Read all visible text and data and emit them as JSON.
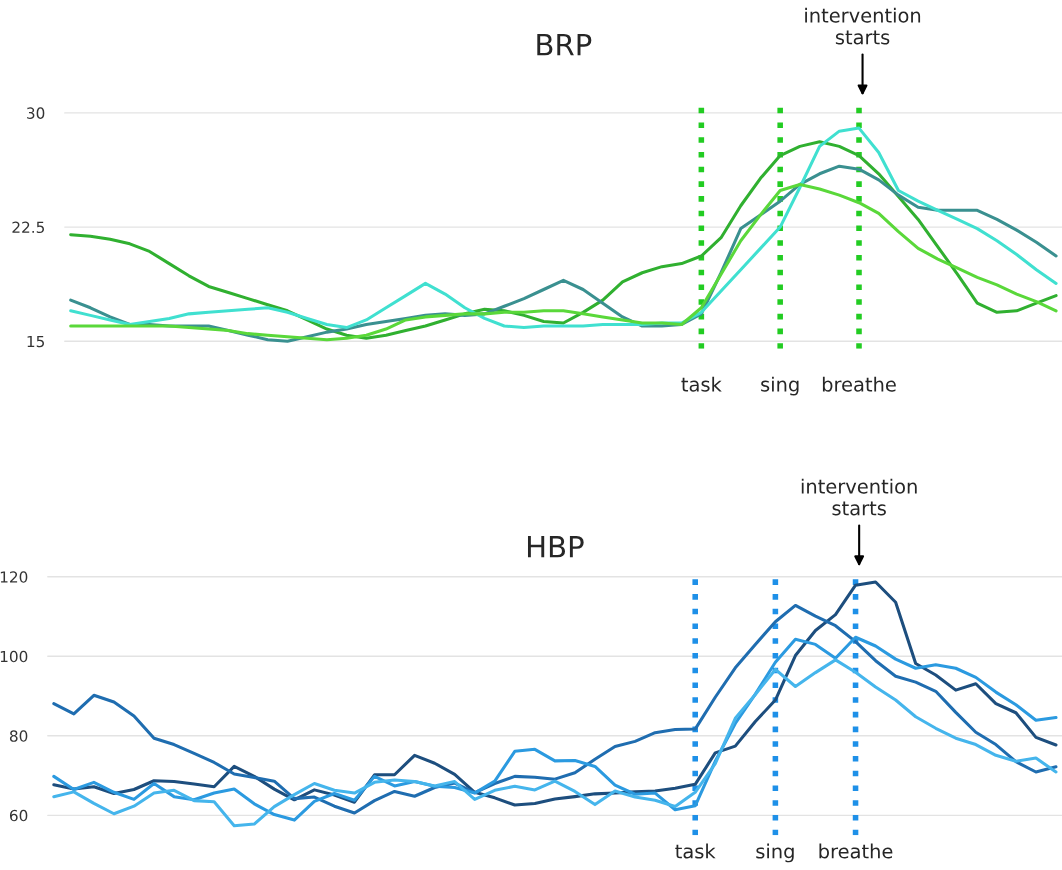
{
  "chart_data": [
    {
      "type": "line",
      "title": "BRP",
      "categories": [
        null,
        null,
        null,
        null,
        null,
        null,
        null,
        null,
        null,
        null,
        null,
        null,
        null,
        null,
        null,
        null,
        null,
        null,
        null,
        null,
        null,
        null,
        null,
        null,
        null,
        null,
        null,
        null,
        null,
        null,
        null,
        null,
        "task",
        null,
        null,
        null,
        "sing",
        null,
        null,
        null,
        "breathe",
        null,
        null,
        null,
        null,
        null,
        null,
        null,
        null,
        null,
        null
      ],
      "ylim": [
        14.5,
        30.5
      ],
      "yticks": [
        15,
        22.5,
        30
      ],
      "grid": "y",
      "series": [
        {
          "color": "#30b030",
          "values": [
            22.0,
            21.9,
            21.7,
            21.4,
            20.9,
            20.1,
            19.3,
            18.6,
            18.2,
            17.8,
            17.4,
            17.0,
            16.4,
            15.8,
            15.4,
            15.2,
            15.4,
            15.7,
            16.0,
            16.4,
            16.8,
            17.1,
            17.0,
            16.7,
            16.3,
            16.2,
            16.9,
            17.7,
            18.9,
            19.5,
            19.9,
            20.1,
            20.6,
            21.8,
            23.9,
            25.7,
            27.2,
            27.8,
            28.1,
            27.8,
            27.2,
            26.0,
            24.5,
            23.0,
            21.2,
            19.4,
            17.5,
            16.9,
            17.0,
            17.5,
            18.0
          ]
        },
        {
          "color": "#3a9090",
          "values": [
            17.7,
            17.2,
            16.6,
            16.1,
            16.1,
            16.0,
            16.0,
            16.0,
            15.7,
            15.4,
            15.1,
            15.0,
            15.3,
            15.6,
            15.8,
            16.1,
            16.3,
            16.5,
            16.7,
            16.8,
            16.7,
            16.8,
            17.3,
            17.8,
            18.4,
            19.0,
            18.4,
            17.5,
            16.6,
            16.0,
            16.0,
            16.1,
            16.8,
            19.5,
            22.4,
            23.3,
            24.2,
            25.3,
            26.0,
            26.5,
            26.3,
            25.6,
            24.6,
            23.8,
            23.6,
            23.6,
            23.6,
            23.0,
            22.3,
            21.5,
            20.6
          ]
        },
        {
          "color": "#40e0d0",
          "values": [
            17.0,
            16.7,
            16.4,
            16.1,
            16.3,
            16.5,
            16.8,
            16.9,
            17.0,
            17.1,
            17.2,
            16.9,
            16.5,
            16.1,
            15.9,
            16.4,
            17.2,
            18.0,
            18.8,
            18.1,
            17.2,
            16.5,
            16.0,
            15.9,
            16.0,
            16.0,
            16.0,
            16.1,
            16.1,
            16.1,
            16.2,
            16.2,
            16.9,
            18.3,
            19.7,
            21.1,
            22.5,
            25.1,
            27.8,
            28.8,
            29.0,
            27.4,
            24.9,
            24.2,
            23.6,
            23.0,
            22.4,
            21.6,
            20.7,
            19.7,
            18.8
          ]
        },
        {
          "color": "#5ad83a",
          "values": [
            16.0,
            16.0,
            16.0,
            16.0,
            16.0,
            16.0,
            15.9,
            15.8,
            15.7,
            15.5,
            15.4,
            15.3,
            15.2,
            15.1,
            15.2,
            15.4,
            15.8,
            16.4,
            16.6,
            16.7,
            16.8,
            16.8,
            16.9,
            16.9,
            17.0,
            17.0,
            16.8,
            16.6,
            16.4,
            16.2,
            16.2,
            16.1,
            17.2,
            19.4,
            21.6,
            23.3,
            24.9,
            25.3,
            25.0,
            24.6,
            24.1,
            23.4,
            22.2,
            21.1,
            20.4,
            19.8,
            19.2,
            18.7,
            18.1,
            17.6,
            17.0
          ]
        }
      ],
      "ref_lines": [
        {
          "axis": "x",
          "value": "task",
          "color": "#22cc22",
          "line_style": "dotted"
        },
        {
          "axis": "x",
          "value": "sing",
          "color": "#22cc22",
          "line_style": "dotted"
        },
        {
          "axis": "x",
          "value": "breathe",
          "color": "#22cc22",
          "line_style": "dotted"
        }
      ],
      "annotations": [
        "intervention\nstarts"
      ]
    },
    {
      "type": "line",
      "title": "HBP",
      "categories": [
        null,
        null,
        null,
        null,
        null,
        null,
        null,
        null,
        null,
        null,
        null,
        null,
        null,
        null,
        null,
        null,
        null,
        null,
        null,
        null,
        null,
        null,
        null,
        null,
        null,
        null,
        null,
        null,
        null,
        null,
        null,
        null,
        "task",
        null,
        null,
        null,
        "sing",
        null,
        null,
        null,
        "breathe",
        null,
        null,
        null,
        null,
        null,
        null,
        null,
        null,
        null,
        null
      ],
      "ylim": [
        55,
        120
      ],
      "yticks": [
        60,
        80,
        100,
        120
      ],
      "grid": "y",
      "series": [
        {
          "color": "#1d4e7e",
          "values": [
            67.7,
            66.6,
            67.2,
            65.5,
            66.5,
            68.7,
            68.5,
            67.9,
            67.2,
            72.3,
            69.8,
            66.6,
            63.9,
            66.4,
            65.1,
            63.3,
            70.2,
            70.2,
            75.1,
            73.1,
            70.3,
            65.8,
            64.4,
            62.6,
            63.0,
            64.1,
            64.7,
            65.4,
            65.6,
            65.9,
            66.1,
            66.8,
            67.8,
            75.7,
            77.4,
            83.6,
            89.0,
            100.2,
            106.5,
            110.5,
            117.9,
            118.7,
            113.6,
            98.2,
            95.3,
            91.5,
            93.1,
            88.1,
            85.8,
            79.6,
            77.7
          ]
        },
        {
          "color": "#1f6db0",
          "values": [
            88.1,
            85.5,
            90.2,
            88.5,
            85.0,
            79.4,
            77.8,
            75.6,
            73.3,
            70.4,
            69.5,
            68.6,
            64.2,
            64.6,
            62.3,
            60.6,
            63.7,
            66.0,
            64.8,
            67.0,
            68.1,
            65.7,
            68.0,
            69.8,
            69.6,
            69.1,
            70.7,
            74.1,
            77.3,
            78.6,
            80.8,
            81.6,
            81.7,
            89.7,
            97.1,
            103.0,
            108.7,
            112.8,
            110.1,
            107.7,
            103.7,
            98.9,
            95.0,
            93.5,
            91.2,
            85.9,
            80.9,
            77.8,
            73.5,
            70.9,
            72.2
          ]
        },
        {
          "color": "#2b9ae0",
          "values": [
            69.8,
            66.5,
            68.3,
            65.8,
            64.0,
            68.0,
            64.7,
            63.9,
            65.6,
            66.6,
            62.9,
            60.2,
            58.8,
            63.5,
            65.5,
            63.8,
            69.8,
            67.4,
            68.5,
            67.3,
            67.0,
            65.6,
            68.6,
            76.1,
            76.6,
            73.7,
            73.8,
            72.3,
            67.6,
            65.3,
            65.6,
            61.4,
            62.4,
            73.6,
            83.1,
            90.5,
            98.5,
            104.3,
            103.0,
            99.5,
            104.8,
            102.6,
            99.3,
            97.0,
            97.9,
            97.0,
            94.7,
            91.0,
            87.8,
            83.9,
            84.6
          ]
        },
        {
          "color": "#45b5ec",
          "values": [
            64.7,
            65.9,
            63.0,
            60.4,
            62.3,
            65.6,
            66.3,
            63.7,
            63.4,
            57.4,
            57.8,
            62.2,
            65.2,
            68.0,
            66.3,
            65.6,
            68.3,
            68.9,
            68.5,
            67.4,
            68.5,
            64.0,
            66.3,
            67.3,
            66.4,
            68.6,
            66.0,
            62.7,
            66.1,
            64.6,
            63.8,
            62.2,
            65.8,
            73.0,
            84.4,
            90.4,
            96.7,
            92.4,
            95.9,
            99.1,
            96.0,
            92.3,
            89.0,
            84.8,
            81.9,
            79.4,
            77.8,
            75.1,
            73.6,
            74.4,
            70.9
          ]
        }
      ],
      "ref_lines": [
        {
          "axis": "x",
          "value": "task",
          "color": "#1e90e8",
          "line_style": "dotted"
        },
        {
          "axis": "x",
          "value": "sing",
          "color": "#1e90e8",
          "line_style": "dotted"
        },
        {
          "axis": "x",
          "value": "breathe",
          "color": "#1e90e8",
          "line_style": "dotted"
        }
      ],
      "annotations": [
        "intervention\nstarts"
      ]
    }
  ]
}
